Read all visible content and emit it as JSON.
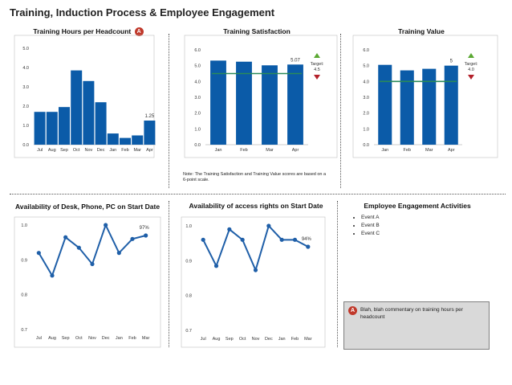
{
  "page_title": "Training, Induction Process & Employee Engagement",
  "colors": {
    "bar": "#0b5ba8",
    "line": "#1f5fa8",
    "target": "#2a8a5a",
    "badge": "#c0392b",
    "up": "#5aa832",
    "down": "#b3202a"
  },
  "badge_letter": "A",
  "note": "Note: The Training Satisfaction and Training Value scores are based on a 6-point scale.",
  "engagement": {
    "title": "Employee Engagement Activities",
    "events": [
      "Event A",
      "Event B",
      "Event C"
    ],
    "commentary": "Blah, blah commentary on training hours per headcount"
  },
  "chart_data": [
    {
      "type": "bar",
      "title": "Training Hours per Headcount",
      "categories": [
        "Jul",
        "Aug",
        "Sep",
        "Oct",
        "Nov",
        "Dec",
        "Jan",
        "Feb",
        "Mar",
        "Apr"
      ],
      "values": [
        1.7,
        1.7,
        1.95,
        3.85,
        3.3,
        2.2,
        0.58,
        0.35,
        0.48,
        1.25
      ],
      "ylim": [
        0,
        5
      ],
      "yticks": [
        "0.0",
        "1.0",
        "2.0",
        "3.0",
        "4.0",
        "5.0"
      ],
      "data_labels": [
        {
          "index": 9,
          "text": "1.25"
        }
      ]
    },
    {
      "type": "bar",
      "title": "Training Satisfaction",
      "categories": [
        "Jan",
        "Feb",
        "Mar",
        "Apr"
      ],
      "values": [
        5.32,
        5.25,
        5.02,
        5.07
      ],
      "ylim": [
        0,
        6
      ],
      "yticks": [
        "0.0",
        "1.0",
        "2.0",
        "3.0",
        "4.0",
        "5.0",
        "6.0"
      ],
      "target": 4.5,
      "target_label": [
        "Target:",
        "4.5"
      ],
      "data_labels": [
        {
          "index": 3,
          "text": "5.07"
        }
      ]
    },
    {
      "type": "bar",
      "title": "Training Value",
      "categories": [
        "Jan",
        "Feb",
        "Mar",
        "Apr"
      ],
      "values": [
        5.05,
        4.7,
        4.8,
        5.0
      ],
      "ylim": [
        0,
        6
      ],
      "yticks": [
        "0.0",
        "1.0",
        "2.0",
        "3.0",
        "4.0",
        "5.0",
        "6.0"
      ],
      "target": 4.0,
      "target_label": [
        "Target:",
        "4.0"
      ],
      "data_labels": [
        {
          "index": 3,
          "text": "5"
        }
      ]
    },
    {
      "type": "line",
      "title": "Availability of Desk, Phone, PC on Start Date",
      "categories": [
        "Jul",
        "Aug",
        "Sep",
        "Oct",
        "Nov",
        "Dec",
        "Jan",
        "Feb",
        "Mar"
      ],
      "values": [
        0.92,
        0.855,
        0.965,
        0.935,
        0.888,
        1.0,
        0.92,
        0.96,
        0.97
      ],
      "ylim": [
        0.7,
        1.0
      ],
      "yticks": [
        "0.7",
        "0.8",
        "0.9",
        "1.0"
      ],
      "data_labels": [
        {
          "index": 8,
          "text": "97%"
        }
      ]
    },
    {
      "type": "line",
      "title": "Availability of access rights on Start Date",
      "categories": [
        "Jul",
        "Aug",
        "Sep",
        "Oct",
        "Nov",
        "Dec",
        "Jan",
        "Feb",
        "Mar"
      ],
      "values": [
        0.96,
        0.885,
        0.99,
        0.96,
        0.873,
        1.0,
        0.96,
        0.96,
        0.94
      ],
      "ylim": [
        0.7,
        1.0
      ],
      "yticks": [
        "0.7",
        "0.8",
        "0.9",
        "1.0"
      ],
      "data_labels": [
        {
          "index": 8,
          "text": "94%"
        }
      ]
    }
  ]
}
